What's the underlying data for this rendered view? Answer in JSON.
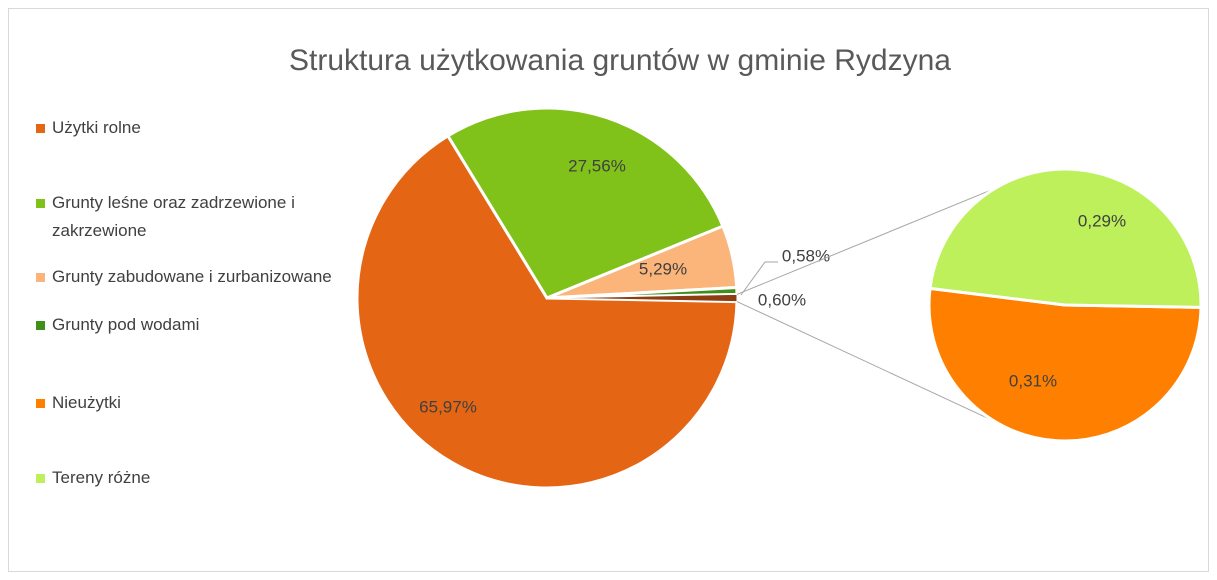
{
  "chart_data": {
    "type": "pie-of-pie",
    "title": "Struktura użytkowania gruntów w gminie Rydzyna",
    "categories": [
      "Użytki rolne",
      "Grunty leśne oraz zadrzewione i zakrzewione",
      "Grunty zabudowane i zurbanizowane",
      "Grunty pod wodami",
      "Nieużytki",
      "Tereny różne"
    ],
    "values": [
      65.97,
      27.56,
      5.29,
      0.58,
      0.31,
      0.29
    ],
    "value_labels": [
      "65,97%",
      "27,56%",
      "5,29%",
      "0,58%",
      "0,31%",
      "0,29%"
    ],
    "colors": [
      "#e46514",
      "#80c21a",
      "#fbb57a",
      "#3f8f1c",
      "#ff8000",
      "#bdf05a"
    ],
    "second_pie_count": 2,
    "other_value": 0.6,
    "other_label": "0,60%",
    "other_color": "#8e3c12",
    "legend": "left"
  }
}
